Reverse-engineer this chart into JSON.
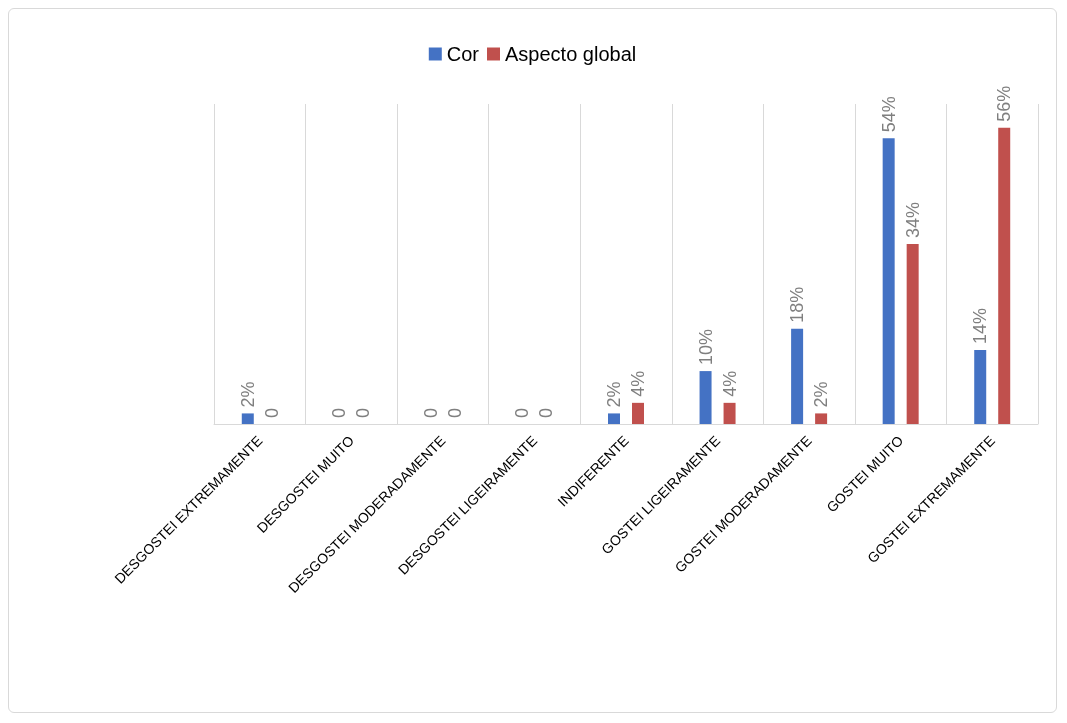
{
  "chart_data": {
    "type": "bar",
    "categories": [
      "DESGOSTEI EXTREMAMENTE",
      "DESGOSTEI MUITO",
      "DESGOSTEI MODERADAMENTE",
      "DESGOSTEI LIGEIRAMENTE",
      "INDIFERENTE",
      "GOSTEI LIGEIRAMENTE",
      "GOSTEI MODERADAMENTE",
      "GOSTEI MUITO",
      "GOSTEI EXTREMAMENTE"
    ],
    "series": [
      {
        "name": "Cor",
        "color": "#4472c4",
        "values": [
          2,
          0,
          0,
          0,
          2,
          10,
          18,
          54,
          14
        ],
        "value_labels": [
          "2%",
          "0",
          "0",
          "0",
          "2%",
          "10%",
          "18%",
          "54%",
          "14%"
        ]
      },
      {
        "name": "Aspecto global",
        "color": "#c0504d",
        "values": [
          0,
          0,
          0,
          0,
          4,
          4,
          2,
          34,
          56
        ],
        "value_labels": [
          "0",
          "0",
          "0",
          "0",
          "4%",
          "4%",
          "2%",
          "34%",
          "56%"
        ]
      }
    ],
    "grid": "x",
    "legend": "top"
  }
}
